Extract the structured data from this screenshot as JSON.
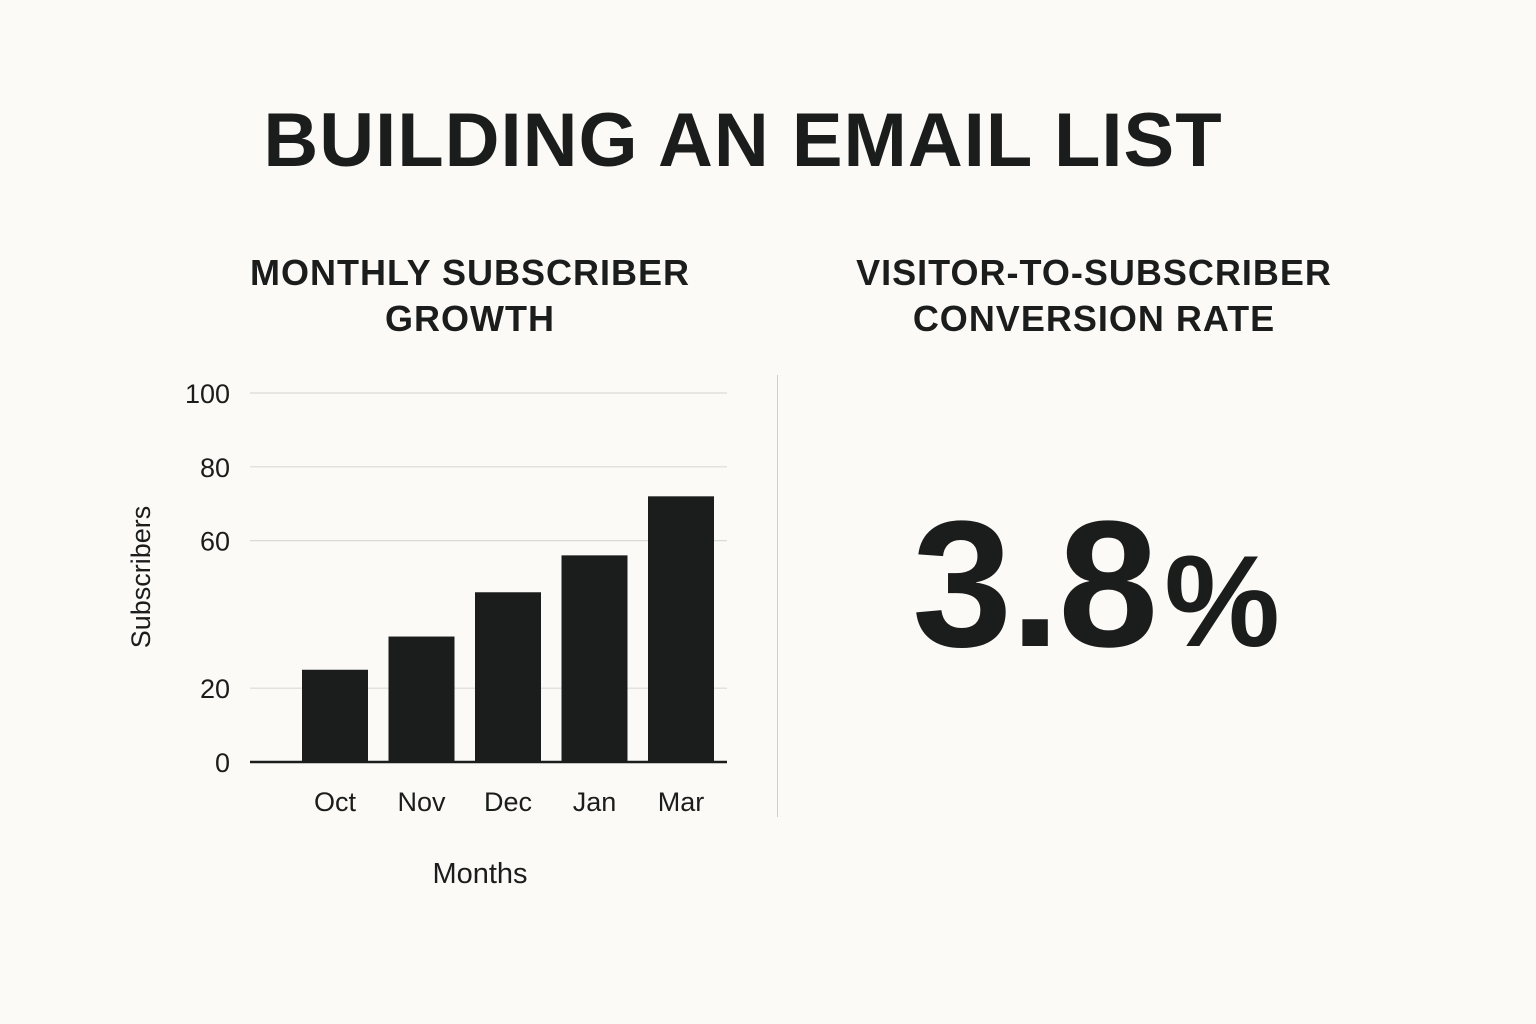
{
  "title": "BUILDING AN EMAIL LIST",
  "left_panel": {
    "title_line1": "MONTHLY SUBSCRIBER",
    "title_line2": "GROWTH"
  },
  "right_panel": {
    "title_line1": "VISITOR-TO-SUBSCRIBER",
    "title_line2": "CONVERSION RATE",
    "stat_value": "3.8",
    "stat_unit": "%"
  },
  "colors": {
    "background": "#fbfaf6",
    "bar": "#1b1c1c",
    "grid": "#d9d9d5"
  },
  "chart_data": {
    "type": "bar",
    "title": "MONTHLY SUBSCRIBER GROWTH",
    "categories": [
      "Oct",
      "Nov",
      "Dec",
      "Jan",
      "Mar"
    ],
    "values": [
      25,
      34,
      46,
      56,
      72
    ],
    "xlabel": "Months",
    "ylabel": "Subscribers",
    "ylim": [
      0,
      100
    ],
    "yticks": [
      0,
      20,
      60,
      80,
      100
    ],
    "ytick_labels": [
      "0",
      "20",
      "60",
      "80",
      "100"
    ],
    "grid": true
  }
}
